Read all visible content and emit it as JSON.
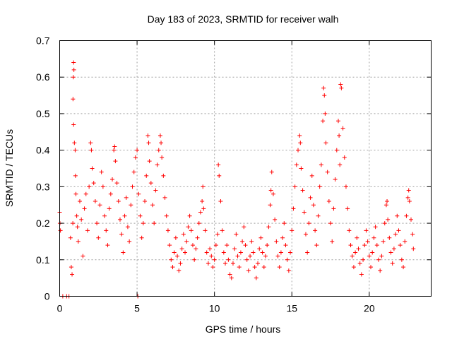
{
  "chart_data": {
    "type": "scatter",
    "title": "Day 183 of 2023, SRMTID for receiver walh",
    "xlabel": "GPS time / hours",
    "ylabel": "SRMTID / TECUs",
    "xlim": [
      0,
      24
    ],
    "ylim": [
      0,
      0.7
    ],
    "xticks": [
      0,
      5,
      10,
      15,
      20
    ],
    "xtick_labels": [
      "0",
      "5",
      "10",
      "15",
      "20"
    ],
    "yticks": [
      0,
      0.1,
      0.2,
      0.3,
      0.4,
      0.5,
      0.6,
      0.7
    ],
    "ytick_labels": [
      "0",
      "0.1",
      "0.2",
      "0.3",
      "0.4",
      "0.5",
      "0.6",
      "0.7"
    ],
    "grid": true,
    "marker": "+",
    "color": "#ff0000",
    "series": [
      {
        "name": "SRMTID",
        "points": [
          [
            0.0,
            0.23
          ],
          [
            0.02,
            0.2
          ],
          [
            0.05,
            0.18
          ],
          [
            0.2,
            0.0
          ],
          [
            0.45,
            0.0
          ],
          [
            0.6,
            0.0
          ],
          [
            0.7,
            0.16
          ],
          [
            0.75,
            0.08
          ],
          [
            0.8,
            0.06
          ],
          [
            0.85,
            0.2
          ],
          [
            0.9,
            0.64
          ],
          [
            0.92,
            0.62
          ],
          [
            0.88,
            0.6
          ],
          [
            0.86,
            0.54
          ],
          [
            0.9,
            0.47
          ],
          [
            0.95,
            0.42
          ],
          [
            1.0,
            0.4
          ],
          [
            1.02,
            0.33
          ],
          [
            1.05,
            0.28
          ],
          [
            1.1,
            0.22
          ],
          [
            1.15,
            0.19
          ],
          [
            1.2,
            0.15
          ],
          [
            1.3,
            0.26
          ],
          [
            1.4,
            0.21
          ],
          [
            1.5,
            0.11
          ],
          [
            1.6,
            0.24
          ],
          [
            1.7,
            0.28
          ],
          [
            1.8,
            0.18
          ],
          [
            1.9,
            0.3
          ],
          [
            2.0,
            0.42
          ],
          [
            2.05,
            0.4
          ],
          [
            2.1,
            0.35
          ],
          [
            2.2,
            0.31
          ],
          [
            2.3,
            0.26
          ],
          [
            2.4,
            0.2
          ],
          [
            2.5,
            0.16
          ],
          [
            2.6,
            0.25
          ],
          [
            2.7,
            0.34
          ],
          [
            2.8,
            0.3
          ],
          [
            2.9,
            0.22
          ],
          [
            3.0,
            0.18
          ],
          [
            3.1,
            0.14
          ],
          [
            3.2,
            0.24
          ],
          [
            3.3,
            0.28
          ],
          [
            3.4,
            0.32
          ],
          [
            3.5,
            0.4
          ],
          [
            3.55,
            0.41
          ],
          [
            3.6,
            0.37
          ],
          [
            3.7,
            0.31
          ],
          [
            3.8,
            0.26
          ],
          [
            3.9,
            0.21
          ],
          [
            4.0,
            0.17
          ],
          [
            4.1,
            0.12
          ],
          [
            4.2,
            0.22
          ],
          [
            4.3,
            0.27
          ],
          [
            4.4,
            0.19
          ],
          [
            4.5,
            0.15
          ],
          [
            4.6,
            0.25
          ],
          [
            4.7,
            0.3
          ],
          [
            4.8,
            0.34
          ],
          [
            4.9,
            0.38
          ],
          [
            5.0,
            0.4
          ],
          [
            5.05,
            0.0
          ],
          [
            5.1,
            0.28
          ],
          [
            5.2,
            0.22
          ],
          [
            5.3,
            0.16
          ],
          [
            5.4,
            0.2
          ],
          [
            5.5,
            0.26
          ],
          [
            5.6,
            0.33
          ],
          [
            5.7,
            0.44
          ],
          [
            5.75,
            0.42
          ],
          [
            5.8,
            0.37
          ],
          [
            5.9,
            0.31
          ],
          [
            6.0,
            0.25
          ],
          [
            6.1,
            0.2
          ],
          [
            6.2,
            0.29
          ],
          [
            6.3,
            0.36
          ],
          [
            6.4,
            0.4
          ],
          [
            6.5,
            0.44
          ],
          [
            6.55,
            0.42
          ],
          [
            6.6,
            0.38
          ],
          [
            6.7,
            0.33
          ],
          [
            6.8,
            0.27
          ],
          [
            6.9,
            0.22
          ],
          [
            7.0,
            0.18
          ],
          [
            7.1,
            0.14
          ],
          [
            7.2,
            0.1
          ],
          [
            7.3,
            0.08
          ],
          [
            7.4,
            0.12
          ],
          [
            7.5,
            0.16
          ],
          [
            7.6,
            0.11
          ],
          [
            7.7,
            0.07
          ],
          [
            7.8,
            0.09
          ],
          [
            7.9,
            0.13
          ],
          [
            8.0,
            0.17
          ],
          [
            8.1,
            0.12
          ],
          [
            8.2,
            0.15
          ],
          [
            8.3,
            0.19
          ],
          [
            8.4,
            0.22
          ],
          [
            8.5,
            0.18
          ],
          [
            8.6,
            0.14
          ],
          [
            8.7,
            0.1
          ],
          [
            8.8,
            0.13
          ],
          [
            8.9,
            0.16
          ],
          [
            9.0,
            0.2
          ],
          [
            9.1,
            0.23
          ],
          [
            9.2,
            0.26
          ],
          [
            9.25,
            0.3
          ],
          [
            9.3,
            0.24
          ],
          [
            9.4,
            0.18
          ],
          [
            9.5,
            0.12
          ],
          [
            9.6,
            0.09
          ],
          [
            9.7,
            0.13
          ],
          [
            9.8,
            0.11
          ],
          [
            9.9,
            0.08
          ],
          [
            10.0,
            0.1
          ],
          [
            10.1,
            0.14
          ],
          [
            10.2,
            0.17
          ],
          [
            10.25,
            0.36
          ],
          [
            10.3,
            0.33
          ],
          [
            10.4,
            0.26
          ],
          [
            10.5,
            0.18
          ],
          [
            10.6,
            0.12
          ],
          [
            10.7,
            0.09
          ],
          [
            10.8,
            0.14
          ],
          [
            10.9,
            0.1
          ],
          [
            11.0,
            0.06
          ],
          [
            11.1,
            0.05
          ],
          [
            11.2,
            0.09
          ],
          [
            11.3,
            0.13
          ],
          [
            11.4,
            0.17
          ],
          [
            11.5,
            0.11
          ],
          [
            11.6,
            0.08
          ],
          [
            11.7,
            0.12
          ],
          [
            11.8,
            0.15
          ],
          [
            11.9,
            0.19
          ],
          [
            12.0,
            0.14
          ],
          [
            12.1,
            0.1
          ],
          [
            12.2,
            0.07
          ],
          [
            12.3,
            0.11
          ],
          [
            12.4,
            0.15
          ],
          [
            12.5,
            0.12
          ],
          [
            12.6,
            0.08
          ],
          [
            12.7,
            0.05
          ],
          [
            12.8,
            0.09
          ],
          [
            12.9,
            0.13
          ],
          [
            13.0,
            0.16
          ],
          [
            13.1,
            0.12
          ],
          [
            13.2,
            0.08
          ],
          [
            13.3,
            0.11
          ],
          [
            13.4,
            0.14
          ],
          [
            13.5,
            0.19
          ],
          [
            13.6,
            0.25
          ],
          [
            13.65,
            0.29
          ],
          [
            13.7,
            0.34
          ],
          [
            13.8,
            0.28
          ],
          [
            13.9,
            0.21
          ],
          [
            14.0,
            0.15
          ],
          [
            14.1,
            0.11
          ],
          [
            14.2,
            0.08
          ],
          [
            14.3,
            0.12
          ],
          [
            14.4,
            0.16
          ],
          [
            14.5,
            0.2
          ],
          [
            14.6,
            0.14
          ],
          [
            14.7,
            0.1
          ],
          [
            14.8,
            0.07
          ],
          [
            14.9,
            0.12
          ],
          [
            15.0,
            0.18
          ],
          [
            15.1,
            0.24
          ],
          [
            15.2,
            0.3
          ],
          [
            15.3,
            0.36
          ],
          [
            15.4,
            0.4
          ],
          [
            15.5,
            0.44
          ],
          [
            15.55,
            0.42
          ],
          [
            15.6,
            0.35
          ],
          [
            15.7,
            0.29
          ],
          [
            15.8,
            0.23
          ],
          [
            15.9,
            0.17
          ],
          [
            16.0,
            0.12
          ],
          [
            16.1,
            0.2
          ],
          [
            16.2,
            0.27
          ],
          [
            16.3,
            0.33
          ],
          [
            16.4,
            0.25
          ],
          [
            16.5,
            0.18
          ],
          [
            16.6,
            0.14
          ],
          [
            16.7,
            0.22
          ],
          [
            16.8,
            0.3
          ],
          [
            16.9,
            0.36
          ],
          [
            17.0,
            0.48
          ],
          [
            17.05,
            0.57
          ],
          [
            17.1,
            0.55
          ],
          [
            17.15,
            0.5
          ],
          [
            17.2,
            0.42
          ],
          [
            17.3,
            0.34
          ],
          [
            17.4,
            0.26
          ],
          [
            17.5,
            0.2
          ],
          [
            17.6,
            0.15
          ],
          [
            17.7,
            0.24
          ],
          [
            17.8,
            0.32
          ],
          [
            17.9,
            0.4
          ],
          [
            18.0,
            0.48
          ],
          [
            18.05,
            0.44
          ],
          [
            18.1,
            0.36
          ],
          [
            18.15,
            0.58
          ],
          [
            18.2,
            0.57
          ],
          [
            18.3,
            0.46
          ],
          [
            18.4,
            0.38
          ],
          [
            18.5,
            0.3
          ],
          [
            18.6,
            0.24
          ],
          [
            18.7,
            0.18
          ],
          [
            18.8,
            0.14
          ],
          [
            18.9,
            0.11
          ],
          [
            19.0,
            0.08
          ],
          [
            19.1,
            0.12
          ],
          [
            19.2,
            0.16
          ],
          [
            19.3,
            0.13
          ],
          [
            19.4,
            0.09
          ],
          [
            19.5,
            0.06
          ],
          [
            19.6,
            0.1
          ],
          [
            19.7,
            0.14
          ],
          [
            19.8,
            0.18
          ],
          [
            19.9,
            0.15
          ],
          [
            20.0,
            0.11
          ],
          [
            20.1,
            0.08
          ],
          [
            20.2,
            0.12
          ],
          [
            20.3,
            0.16
          ],
          [
            20.4,
            0.19
          ],
          [
            20.5,
            0.14
          ],
          [
            20.6,
            0.1
          ],
          [
            20.7,
            0.07
          ],
          [
            20.8,
            0.11
          ],
          [
            20.9,
            0.15
          ],
          [
            21.0,
            0.2
          ],
          [
            21.1,
            0.25
          ],
          [
            21.15,
            0.26
          ],
          [
            21.2,
            0.21
          ],
          [
            21.3,
            0.16
          ],
          [
            21.4,
            0.12
          ],
          [
            21.5,
            0.09
          ],
          [
            21.6,
            0.13
          ],
          [
            21.7,
            0.17
          ],
          [
            21.8,
            0.22
          ],
          [
            21.9,
            0.18
          ],
          [
            22.0,
            0.14
          ],
          [
            22.1,
            0.1
          ],
          [
            22.2,
            0.08
          ],
          [
            22.3,
            0.15
          ],
          [
            22.4,
            0.22
          ],
          [
            22.5,
            0.27
          ],
          [
            22.55,
            0.29
          ],
          [
            22.6,
            0.26
          ],
          [
            22.7,
            0.21
          ],
          [
            22.8,
            0.17
          ],
          [
            22.85,
            0.13
          ]
        ]
      }
    ]
  }
}
